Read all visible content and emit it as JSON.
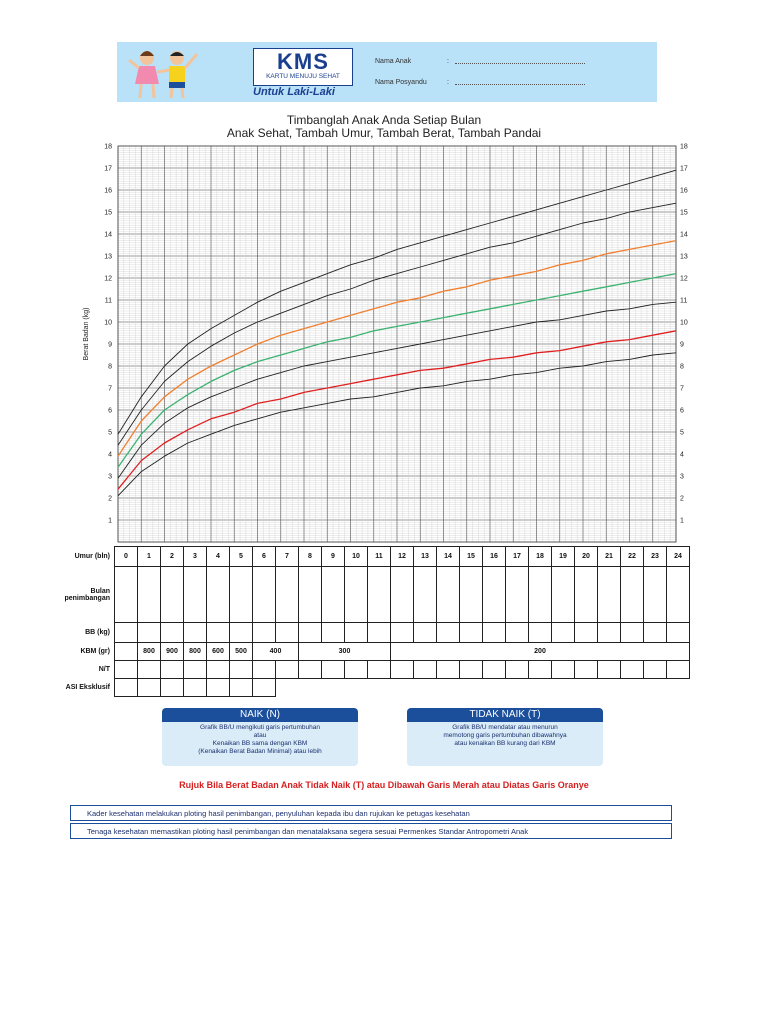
{
  "header": {
    "logo": "KMS",
    "logo_sub": "KARTU MENUJU SEHAT",
    "for": "Untuk Laki-Laki",
    "field_child": "Nama Anak",
    "field_posyandu": "Nama Posyandu",
    "sep": ":"
  },
  "title_line1": "Timbanglah Anak Anda Setiap Bulan",
  "title_line2": "Anak Sehat, Tambah Umur, Tambah Berat, Tambah Pandai",
  "chart_data": {
    "type": "line",
    "ylabel": "Berat Badan (kg)",
    "xlim": [
      0,
      24
    ],
    "ylim": [
      0,
      18
    ],
    "y_ticks": [
      1,
      2,
      3,
      4,
      5,
      6,
      7,
      8,
      9,
      10,
      11,
      12,
      13,
      14,
      15,
      16,
      17,
      18
    ],
    "grid": true,
    "x": [
      0,
      1,
      2,
      3,
      4,
      5,
      6,
      7,
      8,
      9,
      10,
      11,
      12,
      13,
      14,
      15,
      16,
      17,
      18,
      19,
      20,
      21,
      22,
      23,
      24
    ],
    "series": [
      {
        "color": "#222222",
        "values": [
          4.9,
          6.6,
          8.0,
          9.0,
          9.7,
          10.3,
          10.9,
          11.4,
          11.8,
          12.2,
          12.6,
          12.9,
          13.3,
          13.6,
          13.9,
          14.2,
          14.5,
          14.8,
          15.1,
          15.4,
          15.7,
          16.0,
          16.3,
          16.6,
          16.9
        ]
      },
      {
        "color": "#222222",
        "values": [
          4.4,
          6.0,
          7.3,
          8.2,
          8.9,
          9.5,
          10.0,
          10.4,
          10.8,
          11.2,
          11.5,
          11.9,
          12.2,
          12.5,
          12.8,
          13.1,
          13.4,
          13.6,
          13.9,
          14.2,
          14.5,
          14.7,
          15.0,
          15.2,
          15.4
        ]
      },
      {
        "color": "#f08030",
        "values": [
          3.9,
          5.5,
          6.6,
          7.4,
          8.0,
          8.5,
          9.0,
          9.4,
          9.7,
          10.0,
          10.3,
          10.6,
          10.9,
          11.1,
          11.4,
          11.6,
          11.9,
          12.1,
          12.3,
          12.6,
          12.8,
          13.1,
          13.3,
          13.5,
          13.7
        ]
      },
      {
        "color": "#3cb371",
        "values": [
          3.4,
          4.9,
          6.0,
          6.7,
          7.3,
          7.8,
          8.2,
          8.5,
          8.8,
          9.1,
          9.3,
          9.6,
          9.8,
          10.0,
          10.2,
          10.4,
          10.6,
          10.8,
          11.0,
          11.2,
          11.4,
          11.6,
          11.8,
          12.0,
          12.2
        ]
      },
      {
        "color": "#222222",
        "values": [
          2.9,
          4.4,
          5.4,
          6.1,
          6.6,
          7.0,
          7.4,
          7.7,
          8.0,
          8.2,
          8.4,
          8.6,
          8.8,
          9.0,
          9.2,
          9.4,
          9.6,
          9.8,
          10.0,
          10.1,
          10.3,
          10.5,
          10.6,
          10.8,
          10.9
        ]
      },
      {
        "color": "#e02020",
        "values": [
          2.4,
          3.7,
          4.5,
          5.1,
          5.6,
          5.9,
          6.3,
          6.5,
          6.8,
          7.0,
          7.2,
          7.4,
          7.6,
          7.8,
          7.9,
          8.1,
          8.3,
          8.4,
          8.6,
          8.7,
          8.9,
          9.1,
          9.2,
          9.4,
          9.6
        ]
      },
      {
        "color": "#222222",
        "values": [
          2.1,
          3.2,
          3.9,
          4.5,
          4.9,
          5.3,
          5.6,
          5.9,
          6.1,
          6.3,
          6.5,
          6.6,
          6.8,
          7.0,
          7.1,
          7.3,
          7.4,
          7.6,
          7.7,
          7.9,
          8.0,
          8.2,
          8.3,
          8.5,
          8.6
        ]
      }
    ]
  },
  "table": {
    "row_labels": [
      "Umur (bln)",
      "Bulan penimbangan",
      "BB (kg)",
      "KBM (gr)",
      "N/T",
      "ASI Eksklusif"
    ],
    "months": [
      "0",
      "1",
      "2",
      "3",
      "4",
      "5",
      "6",
      "7",
      "8",
      "9",
      "10",
      "11",
      "12",
      "13",
      "14",
      "15",
      "16",
      "17",
      "18",
      "19",
      "20",
      "21",
      "22",
      "23",
      "24"
    ],
    "kbm": [
      "800",
      "900",
      "800",
      "600",
      "500",
      "400",
      "300",
      "200"
    ]
  },
  "naik": {
    "title": "NAIK (N)",
    "l1": "Grafik BB/U mengikuti garis pertumbuhan",
    "l2": "atau",
    "l3": "Kenaikan BB sama dengan KBM",
    "l4": "(Kenaikan Berat Badan Minimal) atau lebih"
  },
  "tidak": {
    "title": "TIDAK NAIK (T)",
    "l1": "Grafik BB/U mendatar atau menurun",
    "l2": "memotong garis pertumbuhan dibawahnya",
    "l3": "atau kenaikan BB kurang dari KBM"
  },
  "refer": "Rujuk Bila Berat Badan Anak Tidak Naik (T) atau Dibawah Garis Merah atau Diatas Garis Oranye",
  "note1": "Kader kesehatan melakukan ploting hasil penimbangan, penyuluhan kepada ibu dan rujukan ke petugas kesehatan",
  "note2": "Tenaga kesehatan memastikan ploting hasil penimbangan dan menatalaksana segera sesuai Permenkes Standar Antropometri Anak"
}
